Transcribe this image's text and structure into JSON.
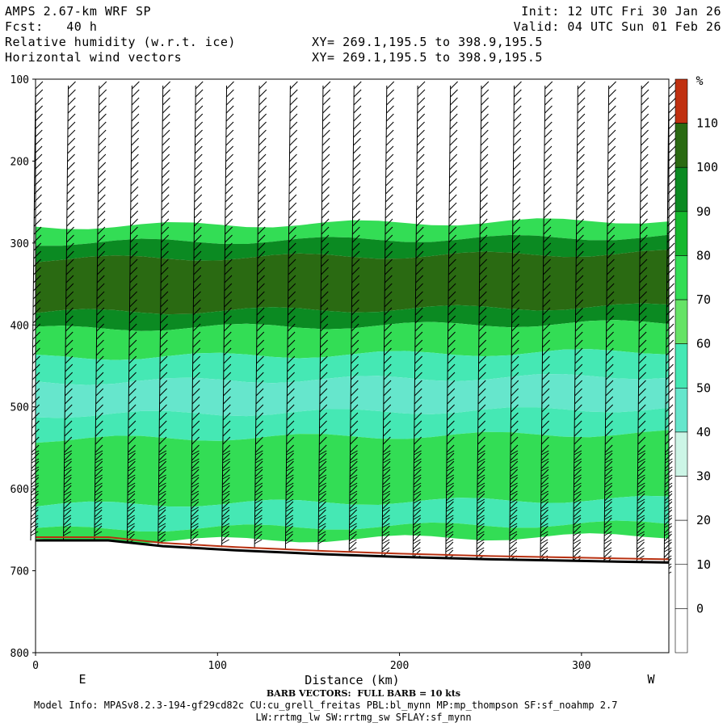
{
  "header": {
    "model": "AMPS 2.67-km WRF SP",
    "fcst": "Fcst:   40 h",
    "field1": "Relative humidity (w.r.t. ice)",
    "field2": "Horizontal wind vectors",
    "xy1": "XY= 269.1,195.5 to 398.9,195.5",
    "xy2": "XY= 269.1,195.5 to 398.9,195.5",
    "init": "Init: 12 UTC Fri 30 Jan 26",
    "valid": "Valid: 04 UTC Sun 01 Feb 26"
  },
  "footer": {
    "barb_note": "BARB VECTORS:  FULL BARB = 10 kts",
    "model_info_1": "Model Info: MPASv8.2.3-194-gf29cd82c CU:cu_grell_freitas PBL:bl_mynn MP:mp_thompson SF:sf_noahmp 2.7",
    "model_info_2": "LW:rrtmg_lw SW:rrtmg_sw SFLAY:sf_mynn"
  },
  "chart_data": {
    "type": "heatmap",
    "title": "Relative humidity (w.r.t. ice)",
    "xlabel": "Distance (km)",
    "ylabel": "",
    "xlim": [
      0,
      348
    ],
    "ylim_pressure_hPa": [
      800,
      100
    ],
    "x_ticks": [
      0,
      100,
      200,
      300
    ],
    "y_ticks": [
      100,
      200,
      300,
      400,
      500,
      600,
      700,
      800
    ],
    "x_end_labels": {
      "left": "E",
      "right": "W"
    },
    "colorbar": {
      "unit": "%",
      "levels": [
        0,
        10,
        20,
        30,
        40,
        50,
        60,
        70,
        80,
        90,
        100,
        110
      ],
      "colors": [
        "#ffffff",
        "#ffffff",
        "#ffffff",
        "#ffffff",
        "#ccf5e6",
        "#66e6cc",
        "#45e8b4",
        "#66e366",
        "#33dd55",
        "#16b82e",
        "#0b8a22",
        "#2a6a12",
        "#c03010"
      ]
    },
    "rh_layers": [
      {
        "p_top": 280,
        "p_bottom": 300,
        "rh": 75
      },
      {
        "p_top": 300,
        "p_bottom": 320,
        "rh": 90
      },
      {
        "p_top": 320,
        "p_bottom": 385,
        "rh": 100
      },
      {
        "p_top": 385,
        "p_bottom": 405,
        "rh": 90
      },
      {
        "p_top": 405,
        "p_bottom": 440,
        "rh": 75
      },
      {
        "p_top": 440,
        "p_bottom": 470,
        "rh": 55
      },
      {
        "p_top": 470,
        "p_bottom": 510,
        "rh": 45
      },
      {
        "p_top": 510,
        "p_bottom": 540,
        "rh": 55
      },
      {
        "p_top": 540,
        "p_bottom": 620,
        "rh": 75
      },
      {
        "p_top": 620,
        "p_bottom": 650,
        "rh": 55
      },
      {
        "p_top": 650,
        "p_bottom": 665,
        "rh": 75
      }
    ],
    "terrain_pressure_hPa": [
      {
        "x": 0,
        "p": 663
      },
      {
        "x": 40,
        "p": 663
      },
      {
        "x": 70,
        "p": 670
      },
      {
        "x": 110,
        "p": 675
      },
      {
        "x": 160,
        "p": 680
      },
      {
        "x": 200,
        "p": 683
      },
      {
        "x": 250,
        "p": 686
      },
      {
        "x": 300,
        "p": 688
      },
      {
        "x": 348,
        "p": 690
      }
    ],
    "barb_columns_km": [
      0,
      18,
      35,
      53,
      70,
      88,
      105,
      123,
      140,
      158,
      175,
      193,
      210,
      228,
      245,
      263,
      280,
      298,
      315,
      333,
      348
    ],
    "barb_top_hPa": 100,
    "full_barb_kts": 10
  }
}
